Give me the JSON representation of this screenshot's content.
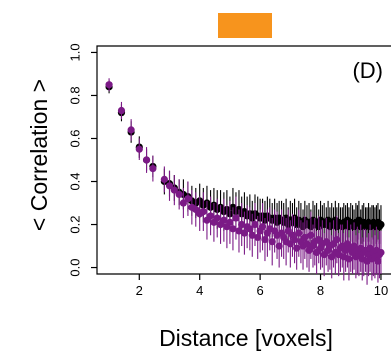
{
  "chart_data": {
    "type": "scatter",
    "panel_label": "(D)",
    "xlabel": "Distance [voxels]",
    "ylabel": "< Correlation >",
    "xlim": [
      0.6,
      10.2
    ],
    "ylim": [
      -0.03,
      1.03
    ],
    "xticks": [
      2,
      4,
      6,
      8,
      10
    ],
    "yticks": [
      0.0,
      0.2,
      0.4,
      0.6,
      0.8,
      1.0
    ],
    "ytick_labels": [
      "0.0",
      "0.2",
      "0.4",
      "0.6",
      "0.8",
      "1.0"
    ],
    "grid": false,
    "legend_marker_color": "#f7941d",
    "colors": {
      "black_series": "#000000",
      "purple_series": "#7b1a86"
    },
    "series": [
      {
        "color": "#000000",
        "x": [
          1.0,
          1.41,
          1.73,
          2.0,
          2.24,
          2.45,
          2.83,
          3.0,
          3.16,
          3.32,
          3.46,
          3.61,
          3.74,
          3.87,
          4.0,
          4.12,
          4.24,
          4.36,
          4.47,
          4.58,
          4.69,
          4.8,
          4.9,
          5.0,
          5.1,
          5.2,
          5.3,
          5.39,
          5.48,
          5.57,
          5.66,
          5.74,
          5.83,
          5.92,
          6.0,
          6.08,
          6.16,
          6.24,
          6.32,
          6.4,
          6.48,
          6.56,
          6.63,
          6.71,
          6.78,
          6.86,
          6.93,
          7.0,
          7.07,
          7.14,
          7.21,
          7.28,
          7.35,
          7.42,
          7.48,
          7.55,
          7.62,
          7.68,
          7.75,
          7.81,
          7.87,
          7.94,
          8.0,
          8.06,
          8.12,
          8.19,
          8.25,
          8.31,
          8.37,
          8.43,
          8.49,
          8.54,
          8.6,
          8.66,
          8.72,
          8.77,
          8.83,
          8.89,
          8.94,
          9.0,
          9.06,
          9.11,
          9.17,
          9.22,
          9.27,
          9.33,
          9.38,
          9.43,
          9.49,
          9.54,
          9.59,
          9.64,
          9.7,
          9.75,
          9.8,
          9.85,
          9.9,
          9.95,
          10.0
        ],
        "y": [
          0.84,
          0.72,
          0.63,
          0.56,
          0.5,
          0.47,
          0.4,
          0.39,
          0.37,
          0.35,
          0.34,
          0.33,
          0.31,
          0.3,
          0.31,
          0.29,
          0.3,
          0.28,
          0.29,
          0.27,
          0.28,
          0.26,
          0.27,
          0.25,
          0.28,
          0.26,
          0.27,
          0.25,
          0.26,
          0.24,
          0.25,
          0.23,
          0.25,
          0.24,
          0.23,
          0.24,
          0.22,
          0.24,
          0.23,
          0.22,
          0.23,
          0.21,
          0.23,
          0.22,
          0.21,
          0.23,
          0.2,
          0.22,
          0.21,
          0.23,
          0.2,
          0.22,
          0.21,
          0.19,
          0.22,
          0.2,
          0.21,
          0.19,
          0.22,
          0.2,
          0.21,
          0.19,
          0.22,
          0.2,
          0.21,
          0.2,
          0.22,
          0.19,
          0.21,
          0.2,
          0.22,
          0.19,
          0.21,
          0.2,
          0.19,
          0.21,
          0.2,
          0.22,
          0.19,
          0.21,
          0.2,
          0.19,
          0.21,
          0.2,
          0.22,
          0.19,
          0.2,
          0.21,
          0.19,
          0.2,
          0.21,
          0.19,
          0.2,
          0.21,
          0.19,
          0.2,
          0.21,
          0.19,
          0.2
        ],
        "err": [
          0.03,
          0.04,
          0.05,
          0.05,
          0.05,
          0.05,
          0.06,
          0.06,
          0.06,
          0.06,
          0.07,
          0.07,
          0.07,
          0.07,
          0.08,
          0.08,
          0.08,
          0.08,
          0.08,
          0.09,
          0.08,
          0.09,
          0.09,
          0.08,
          0.09,
          0.09,
          0.09,
          0.08,
          0.09,
          0.09,
          0.09,
          0.08,
          0.09,
          0.09,
          0.09,
          0.08,
          0.09,
          0.09,
          0.09,
          0.08,
          0.09,
          0.09,
          0.08,
          0.09,
          0.09,
          0.09,
          0.08,
          0.09,
          0.09,
          0.09,
          0.08,
          0.09,
          0.09,
          0.08,
          0.09,
          0.09,
          0.09,
          0.08,
          0.09,
          0.09,
          0.09,
          0.08,
          0.09,
          0.09,
          0.09,
          0.08,
          0.09,
          0.09,
          0.09,
          0.08,
          0.09,
          0.09,
          0.09,
          0.08,
          0.09,
          0.09,
          0.09,
          0.08,
          0.09,
          0.09,
          0.09,
          0.08,
          0.09,
          0.09,
          0.09,
          0.08,
          0.09,
          0.09,
          0.09,
          0.08,
          0.09,
          0.09,
          0.09,
          0.08,
          0.09,
          0.09,
          0.09,
          0.08,
          0.09
        ]
      },
      {
        "color": "#7b1a86",
        "x": [
          1.0,
          1.41,
          1.73,
          2.0,
          2.24,
          2.45,
          2.83,
          3.0,
          3.16,
          3.32,
          3.46,
          3.61,
          3.74,
          3.87,
          4.0,
          4.12,
          4.24,
          4.36,
          4.47,
          4.58,
          4.69,
          4.8,
          4.9,
          5.0,
          5.1,
          5.2,
          5.3,
          5.39,
          5.48,
          5.57,
          5.66,
          5.74,
          5.83,
          5.92,
          6.0,
          6.08,
          6.16,
          6.24,
          6.32,
          6.4,
          6.48,
          6.56,
          6.63,
          6.71,
          6.78,
          6.86,
          6.93,
          7.0,
          7.07,
          7.14,
          7.21,
          7.28,
          7.35,
          7.42,
          7.48,
          7.55,
          7.62,
          7.68,
          7.75,
          7.81,
          7.87,
          7.94,
          8.0,
          8.06,
          8.12,
          8.19,
          8.25,
          8.31,
          8.37,
          8.43,
          8.49,
          8.54,
          8.6,
          8.66,
          8.72,
          8.77,
          8.83,
          8.89,
          8.94,
          9.0,
          9.06,
          9.11,
          9.17,
          9.22,
          9.27,
          9.33,
          9.38,
          9.43,
          9.49,
          9.54,
          9.59,
          9.64,
          9.7,
          9.75,
          9.8,
          9.85,
          9.9,
          9.95,
          10.0
        ],
        "y": [
          0.85,
          0.73,
          0.64,
          0.55,
          0.5,
          0.46,
          0.41,
          0.38,
          0.36,
          0.34,
          0.3,
          0.32,
          0.28,
          0.27,
          0.25,
          0.26,
          0.22,
          0.24,
          0.21,
          0.23,
          0.2,
          0.22,
          0.19,
          0.21,
          0.18,
          0.23,
          0.17,
          0.2,
          0.16,
          0.19,
          0.18,
          0.15,
          0.2,
          0.14,
          0.17,
          0.19,
          0.13,
          0.16,
          0.18,
          0.12,
          0.17,
          0.15,
          0.1,
          0.16,
          0.14,
          0.12,
          0.17,
          0.11,
          0.15,
          0.13,
          0.09,
          0.16,
          0.12,
          0.1,
          0.14,
          0.11,
          0.08,
          0.15,
          0.1,
          0.12,
          0.07,
          0.13,
          0.09,
          0.11,
          0.06,
          0.12,
          0.08,
          0.1,
          0.05,
          0.11,
          0.07,
          0.13,
          0.06,
          0.09,
          0.1,
          0.05,
          0.08,
          0.11,
          0.04,
          0.09,
          0.07,
          0.1,
          0.05,
          0.08,
          0.06,
          0.09,
          0.04,
          0.07,
          0.08,
          0.03,
          0.06,
          0.09,
          0.04,
          0.07,
          0.05,
          0.08,
          0.03,
          0.06,
          0.07
        ],
        "err": [
          0.03,
          0.04,
          0.05,
          0.05,
          0.06,
          0.06,
          0.06,
          0.07,
          0.07,
          0.07,
          0.07,
          0.08,
          0.08,
          0.08,
          0.08,
          0.09,
          0.09,
          0.09,
          0.09,
          0.09,
          0.09,
          0.1,
          0.1,
          0.1,
          0.1,
          0.1,
          0.1,
          0.1,
          0.1,
          0.1,
          0.1,
          0.1,
          0.1,
          0.1,
          0.1,
          0.11,
          0.1,
          0.11,
          0.1,
          0.11,
          0.1,
          0.11,
          0.1,
          0.11,
          0.1,
          0.11,
          0.1,
          0.11,
          0.1,
          0.11,
          0.1,
          0.11,
          0.1,
          0.11,
          0.1,
          0.11,
          0.1,
          0.11,
          0.1,
          0.11,
          0.1,
          0.11,
          0.1,
          0.11,
          0.1,
          0.11,
          0.1,
          0.11,
          0.1,
          0.11,
          0.1,
          0.11,
          0.1,
          0.11,
          0.1,
          0.11,
          0.1,
          0.11,
          0.1,
          0.11,
          0.1,
          0.11,
          0.1,
          0.11,
          0.1,
          0.11,
          0.1,
          0.11,
          0.1,
          0.11,
          0.1,
          0.11,
          0.1,
          0.11,
          0.1,
          0.11,
          0.1,
          0.11,
          0.1
        ]
      }
    ]
  }
}
